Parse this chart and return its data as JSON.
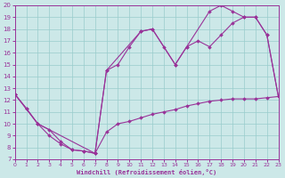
{
  "xlabel": "Windchill (Refroidissement éolien,°C)",
  "xlim": [
    0,
    23
  ],
  "ylim": [
    7,
    20
  ],
  "xticks": [
    0,
    1,
    2,
    3,
    4,
    5,
    6,
    7,
    8,
    9,
    10,
    11,
    12,
    13,
    14,
    15,
    16,
    17,
    18,
    19,
    20,
    21,
    22,
    23
  ],
  "yticks": [
    7,
    8,
    9,
    10,
    11,
    12,
    13,
    14,
    15,
    16,
    17,
    18,
    19,
    20
  ],
  "bg": "#cce8e8",
  "grid_color": "#99cccc",
  "lc": "#993399",
  "line1_x": [
    0,
    1,
    2,
    3,
    4,
    5,
    6,
    7,
    8,
    9,
    10,
    11,
    12,
    13,
    14,
    15,
    16,
    17,
    18,
    19,
    20,
    21,
    22,
    23
  ],
  "line1_y": [
    12.5,
    11.3,
    10.0,
    9.5,
    8.5,
    7.8,
    7.7,
    7.5,
    9.3,
    10.0,
    10.2,
    10.5,
    10.8,
    11.0,
    11.2,
    11.5,
    11.7,
    11.9,
    12.0,
    12.1,
    12.1,
    12.1,
    12.2,
    12.3
  ],
  "line2_x": [
    0,
    1,
    2,
    3,
    4,
    5,
    6,
    7,
    8,
    9,
    10,
    11,
    12,
    13,
    14,
    15,
    16,
    17,
    18,
    19,
    20,
    21,
    22,
    23
  ],
  "line2_y": [
    12.5,
    11.3,
    10.0,
    9.0,
    8.3,
    7.8,
    7.7,
    7.5,
    14.5,
    15.0,
    16.5,
    17.8,
    18.0,
    16.5,
    15.0,
    16.5,
    17.0,
    16.5,
    17.5,
    18.5,
    19.0,
    19.0,
    17.5,
    12.3
  ],
  "line3_x": [
    0,
    2,
    7,
    8,
    11,
    12,
    14,
    15,
    17,
    18,
    19,
    20,
    21,
    22,
    23
  ],
  "line3_y": [
    12.5,
    10.0,
    7.5,
    14.5,
    17.8,
    18.0,
    15.0,
    16.5,
    19.5,
    20.0,
    19.5,
    19.0,
    19.0,
    17.5,
    12.3
  ]
}
